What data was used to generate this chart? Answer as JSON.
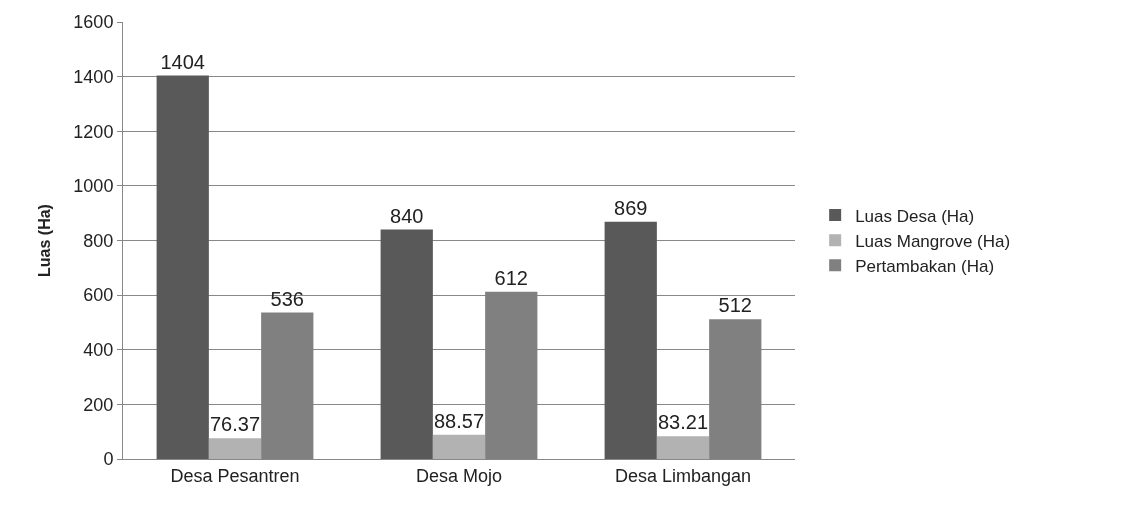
{
  "chart_data": {
    "type": "bar",
    "ylabel": "Luas (Ha)",
    "categories": [
      "Desa Pesantren",
      "Desa Mojo",
      "Desa Limbangan"
    ],
    "series": [
      {
        "name": "Luas Desa (Ha)",
        "color": "#595959",
        "values": [
          1404,
          840,
          869
        ]
      },
      {
        "name": "Luas Mangrove (Ha)",
        "color": "#b2b2b2",
        "values": [
          76.37,
          88.57,
          83.21
        ]
      },
      {
        "name": "Pertambakan (Ha)",
        "color": "#808080",
        "values": [
          536,
          612,
          512
        ]
      }
    ],
    "ylim": [
      0,
      1600
    ],
    "yticks": [
      0,
      200,
      400,
      600,
      800,
      1000,
      1200,
      1400,
      1600
    ],
    "grid": "y",
    "legend": "right",
    "data_labels": true
  }
}
